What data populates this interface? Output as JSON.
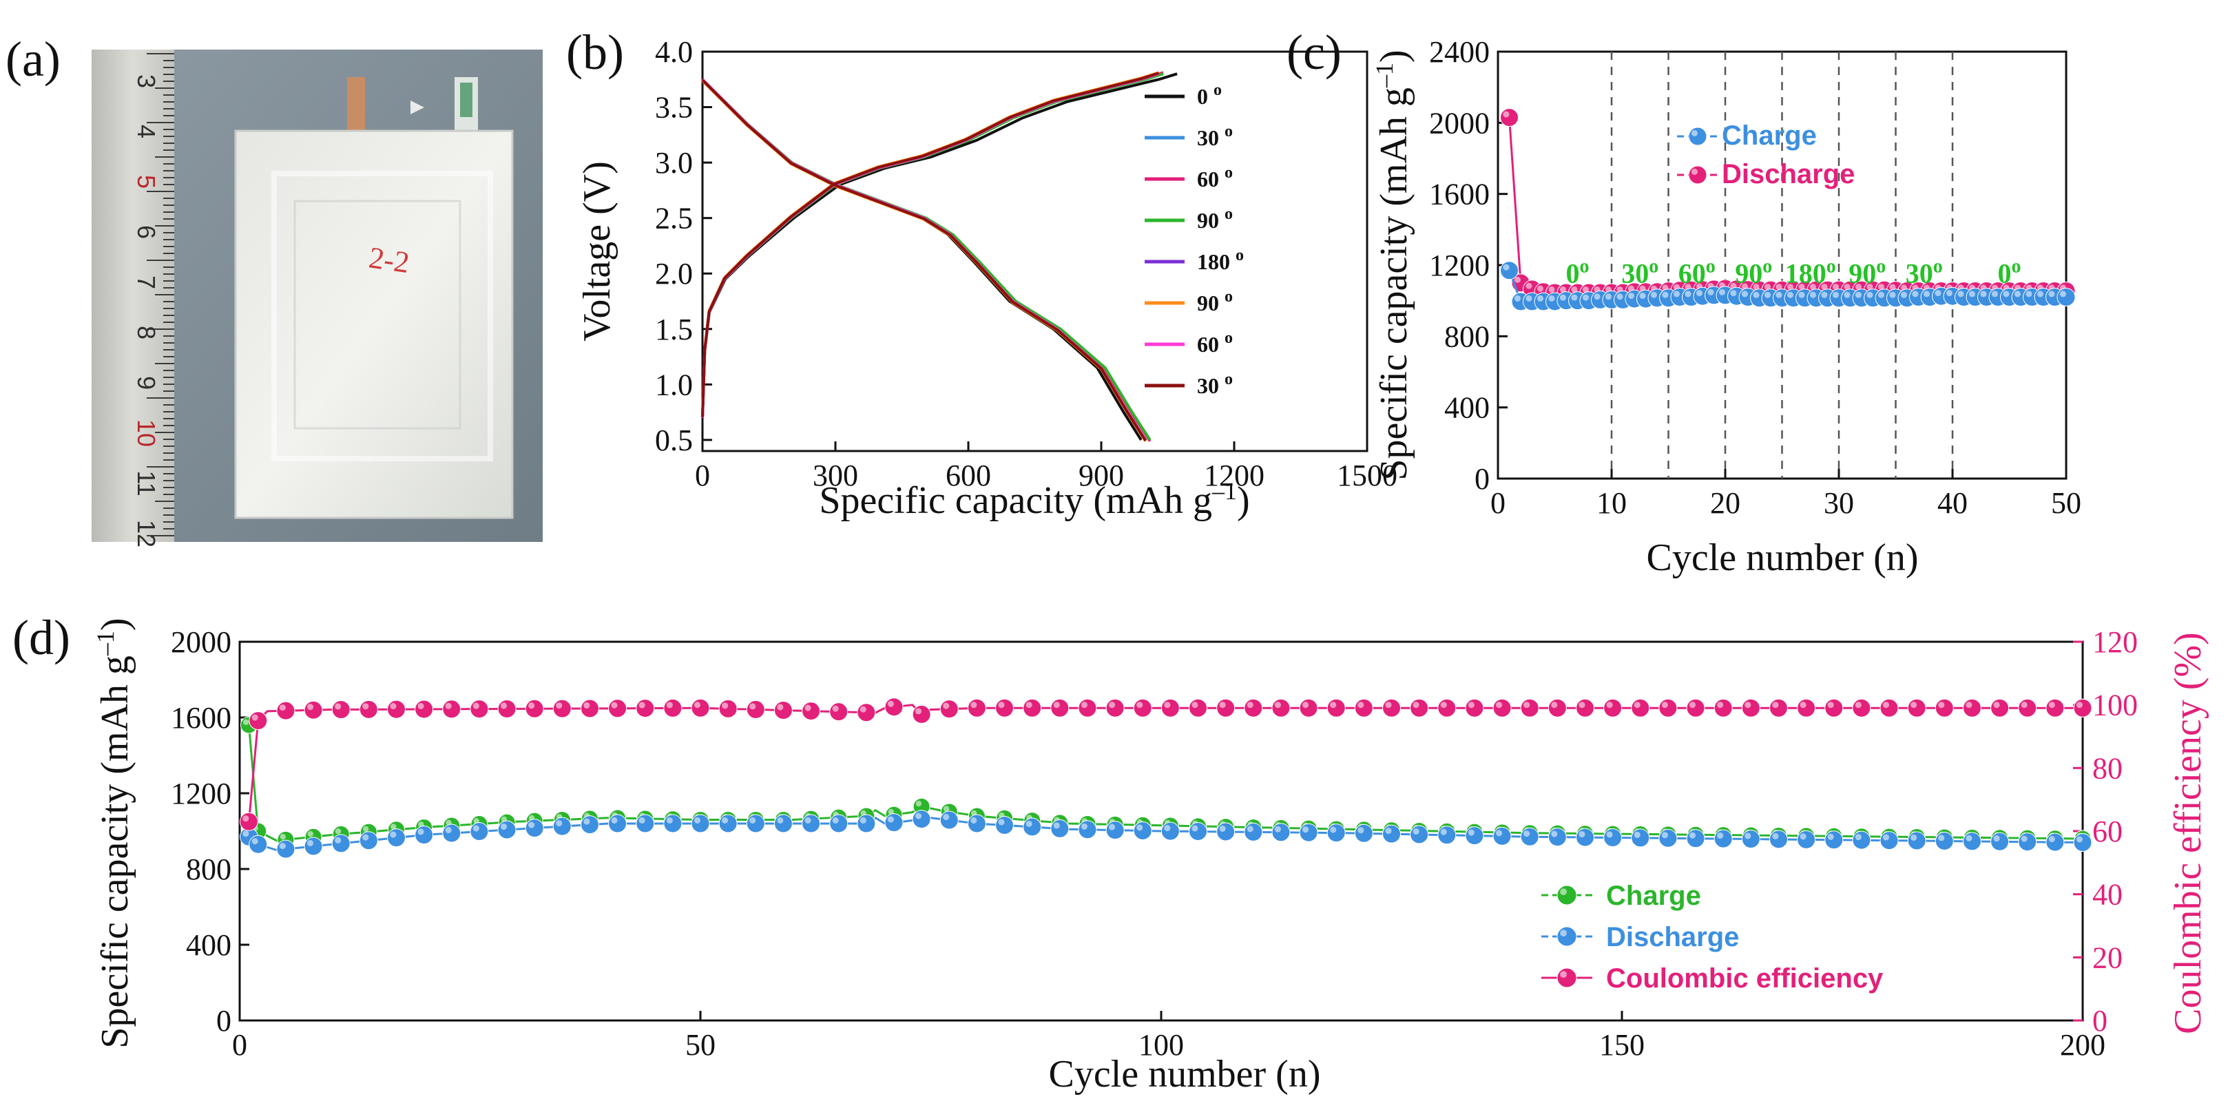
{
  "colors": {
    "blue": "#3d8fe0",
    "pink": "#e3207a",
    "green": "#2bb52b",
    "black": "#111111",
    "angle_green": "#27c227"
  },
  "panels": {
    "a": {
      "letter": "(a)",
      "ruler_numbers": [
        "3",
        "4",
        "5",
        "6",
        "7",
        "8",
        "9",
        "10",
        "11",
        "12"
      ],
      "cell_mark": "2-2"
    },
    "b": {
      "letter": "(b)"
    },
    "c": {
      "letter": "(c)"
    },
    "d": {
      "letter": "(d)"
    }
  },
  "chart_data": [
    {
      "id": "b",
      "type": "line",
      "xlabel": "Specific capacity (mAh g–1)",
      "ylabel": "Voltage (V)",
      "xlim": [
        0,
        1500
      ],
      "ylim": [
        0.4,
        4.0
      ],
      "xticks": [
        "0",
        "300",
        "600",
        "900",
        "1200",
        "1500"
      ],
      "yticks": [
        "0.5",
        "1.0",
        "1.5",
        "2.0",
        "2.5",
        "3.0",
        "3.5",
        "4.0"
      ],
      "charge_base": [
        [
          0,
          0.7
        ],
        [
          5,
          1.3
        ],
        [
          15,
          1.65
        ],
        [
          50,
          1.95
        ],
        [
          100,
          2.15
        ],
        [
          200,
          2.5
        ],
        [
          300,
          2.8
        ],
        [
          400,
          2.95
        ],
        [
          500,
          3.05
        ],
        [
          600,
          3.2
        ],
        [
          700,
          3.4
        ],
        [
          800,
          3.55
        ],
        [
          900,
          3.65
        ],
        [
          1000,
          3.75
        ],
        [
          1040,
          3.8
        ]
      ],
      "discharge_base": [
        [
          0,
          3.75
        ],
        [
          100,
          3.35
        ],
        [
          200,
          3.0
        ],
        [
          300,
          2.8
        ],
        [
          400,
          2.65
        ],
        [
          500,
          2.5
        ],
        [
          560,
          2.35
        ],
        [
          620,
          2.1
        ],
        [
          700,
          1.75
        ],
        [
          800,
          1.5
        ],
        [
          900,
          1.15
        ],
        [
          960,
          0.75
        ],
        [
          1000,
          0.5
        ]
      ],
      "series": [
        {
          "name": "0 o",
          "color": "#111111",
          "cap_scale": 1.03,
          "dis_scale": 0.99
        },
        {
          "name": "30 o",
          "color": "#3d8fe0",
          "cap_scale": 1.0,
          "dis_scale": 1.0
        },
        {
          "name": "60 o",
          "color": "#e3207a",
          "cap_scale": 1.0,
          "dis_scale": 1.01
        },
        {
          "name": "90 o",
          "color": "#2bb52b",
          "cap_scale": 1.0,
          "dis_scale": 1.01
        },
        {
          "name": "180 o",
          "color": "#7b2fd6",
          "cap_scale": 0.99,
          "dis_scale": 1.0
        },
        {
          "name": "90 o",
          "color": "#ff8c1a",
          "cap_scale": 0.99,
          "dis_scale": 1.0
        },
        {
          "name": "60 o",
          "color": "#ff3ad8",
          "cap_scale": 0.99,
          "dis_scale": 1.0
        },
        {
          "name": "30 o",
          "color": "#8b1010",
          "cap_scale": 0.99,
          "dis_scale": 1.0
        }
      ]
    },
    {
      "id": "c",
      "type": "scatter",
      "xlabel": "Cycle number (n)",
      "ylabel": "Specific capacity (mAh g–1)",
      "xlim": [
        0,
        50
      ],
      "ylim": [
        0,
        2400
      ],
      "xticks": [
        "0",
        "10",
        "20",
        "30",
        "40",
        "50"
      ],
      "yticks": [
        "0",
        "400",
        "800",
        "1200",
        "1600",
        "2000",
        "2400"
      ],
      "dividers": [
        10,
        15,
        20,
        25,
        30,
        35,
        40
      ],
      "angle_labels": [
        {
          "x": 7,
          "text": "0",
          "sup": "o"
        },
        {
          "x": 12.5,
          "text": "30",
          "sup": "o"
        },
        {
          "x": 17.5,
          "text": "60",
          "sup": "o"
        },
        {
          "x": 22.5,
          "text": "90",
          "sup": "o"
        },
        {
          "x": 27.5,
          "text": "180",
          "sup": "o"
        },
        {
          "x": 32.5,
          "text": "90",
          "sup": "o"
        },
        {
          "x": 37.5,
          "text": "30",
          "sup": "o"
        },
        {
          "x": 45,
          "text": "0",
          "sup": "o"
        }
      ],
      "series": [
        {
          "name": "Discharge",
          "color": "#e3207a",
          "x": [
            1,
            2,
            3,
            4,
            5,
            6,
            7,
            8,
            9,
            10,
            11,
            12,
            13,
            14,
            15,
            16,
            17,
            18,
            19,
            20,
            21,
            22,
            23,
            24,
            25,
            26,
            27,
            28,
            29,
            30,
            31,
            32,
            33,
            34,
            35,
            36,
            37,
            38,
            39,
            40,
            41,
            42,
            43,
            44,
            45,
            46,
            47,
            48,
            49,
            50
          ],
          "values": [
            2030,
            1100,
            1065,
            1050,
            1045,
            1045,
            1045,
            1045,
            1045,
            1045,
            1045,
            1050,
            1050,
            1050,
            1055,
            1058,
            1060,
            1062,
            1065,
            1068,
            1065,
            1062,
            1060,
            1060,
            1060,
            1060,
            1060,
            1060,
            1060,
            1060,
            1060,
            1060,
            1060,
            1060,
            1058,
            1055,
            1055,
            1055,
            1055,
            1055,
            1055,
            1055,
            1055,
            1055,
            1055,
            1055,
            1055,
            1055,
            1055,
            1055
          ]
        },
        {
          "name": "Charge",
          "color": "#3d8fe0",
          "x": [
            1,
            2,
            3,
            4,
            5,
            6,
            7,
            8,
            9,
            10,
            11,
            12,
            13,
            14,
            15,
            16,
            17,
            18,
            19,
            20,
            21,
            22,
            23,
            24,
            25,
            26,
            27,
            28,
            29,
            30,
            31,
            32,
            33,
            34,
            35,
            36,
            37,
            38,
            39,
            40,
            41,
            42,
            43,
            44,
            45,
            46,
            47,
            48,
            49,
            50
          ],
          "values": [
            1170,
            995,
            995,
            995,
            995,
            1000,
            1000,
            1000,
            1005,
            1005,
            1005,
            1010,
            1010,
            1015,
            1015,
            1020,
            1020,
            1025,
            1030,
            1030,
            1025,
            1020,
            1015,
            1015,
            1015,
            1015,
            1015,
            1015,
            1015,
            1015,
            1015,
            1015,
            1015,
            1015,
            1015,
            1015,
            1020,
            1020,
            1025,
            1025,
            1020,
            1020,
            1020,
            1020,
            1020,
            1020,
            1020,
            1020,
            1020,
            1020
          ]
        }
      ],
      "legend": [
        {
          "label": "Charge",
          "color": "#3d8fe0"
        },
        {
          "label": "Discharge",
          "color": "#e3207a"
        }
      ]
    },
    {
      "id": "d",
      "type": "scatter",
      "xlabel": "Cycle number (n)",
      "ylabel": "Specific capacity (mAh g–1)",
      "y2label": "Coulombic efficiency (%)",
      "xlim": [
        0,
        200
      ],
      "ylim": [
        0,
        2000
      ],
      "y2lim": [
        0,
        120
      ],
      "xticks": [
        "0",
        "50",
        "100",
        "150",
        "200"
      ],
      "yticks": [
        "0",
        "400",
        "800",
        "1200",
        "1600",
        "2000"
      ],
      "y2ticks": [
        "0",
        "20",
        "40",
        "60",
        "80",
        "100",
        "120"
      ],
      "charge_anchors": [
        [
          1,
          1560
        ],
        [
          2,
          1000
        ],
        [
          4,
          950
        ],
        [
          10,
          980
        ],
        [
          20,
          1020
        ],
        [
          30,
          1050
        ],
        [
          40,
          1070
        ],
        [
          50,
          1060
        ],
        [
          60,
          1060
        ],
        [
          68,
          1080
        ],
        [
          69,
          1110
        ],
        [
          70,
          1080
        ],
        [
          73,
          1100
        ],
        [
          74,
          1130
        ],
        [
          76,
          1110
        ],
        [
          80,
          1080
        ],
        [
          90,
          1040
        ],
        [
          100,
          1030
        ],
        [
          120,
          1010
        ],
        [
          140,
          990
        ],
        [
          160,
          980
        ],
        [
          180,
          970
        ],
        [
          200,
          960
        ]
      ],
      "discharge_anchors": [
        [
          1,
          970
        ],
        [
          2,
          930
        ],
        [
          4,
          900
        ],
        [
          10,
          930
        ],
        [
          20,
          980
        ],
        [
          30,
          1010
        ],
        [
          40,
          1040
        ],
        [
          50,
          1040
        ],
        [
          60,
          1040
        ],
        [
          68,
          1040
        ],
        [
          69,
          1070
        ],
        [
          70,
          1040
        ],
        [
          72,
          1050
        ],
        [
          75,
          1070
        ],
        [
          80,
          1040
        ],
        [
          90,
          1010
        ],
        [
          100,
          1000
        ],
        [
          120,
          990
        ],
        [
          140,
          970
        ],
        [
          160,
          960
        ],
        [
          180,
          950
        ],
        [
          200,
          940
        ]
      ],
      "ce_anchors": [
        [
          1,
          63
        ],
        [
          2,
          95
        ],
        [
          3,
          98
        ],
        [
          10,
          98.5
        ],
        [
          50,
          99
        ],
        [
          69,
          97.5
        ],
        [
          70,
          99
        ],
        [
          73,
          100
        ],
        [
          74,
          97
        ],
        [
          75,
          98.5
        ],
        [
          80,
          99
        ],
        [
          200,
          99
        ]
      ],
      "legend": [
        {
          "label": "Charge",
          "color": "#2bb52b"
        },
        {
          "label": "Discharge",
          "color": "#3d8fe0"
        },
        {
          "label": "Coulombic efficiency",
          "color": "#e3207a"
        }
      ]
    }
  ]
}
